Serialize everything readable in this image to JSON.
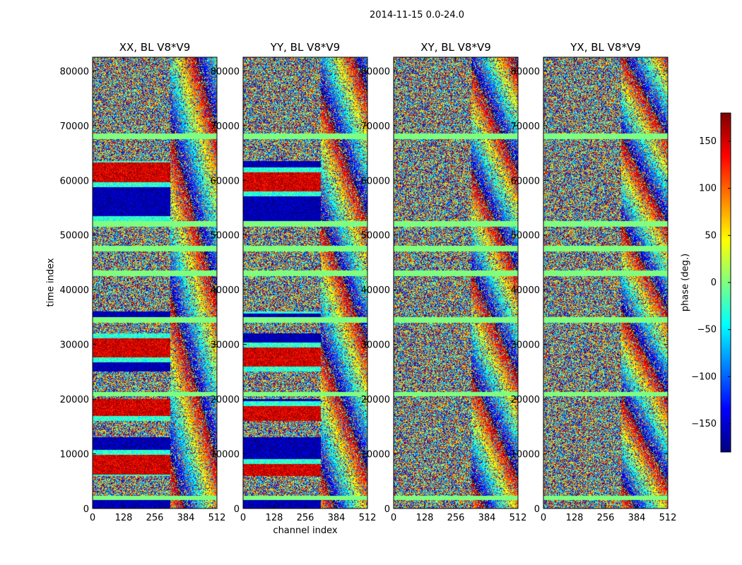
{
  "figure_title": "2014-11-15 0.0-24.0",
  "chart_data": [
    {
      "type": "heatmap",
      "title": "XX, BL V8*V9",
      "xlabel": "",
      "ylabel": "time index",
      "xlim": [
        0,
        512
      ],
      "ylim": [
        0,
        82500
      ],
      "xticks": [
        0,
        128,
        256,
        384,
        512
      ],
      "yticks": [
        0,
        10000,
        20000,
        30000,
        40000,
        50000,
        60000,
        70000,
        80000
      ],
      "value_range": [
        -180,
        180
      ],
      "colormap": "jet",
      "coherent_phase_time_ranges": [
        [
          0,
          2000
        ],
        [
          6000,
          13000
        ],
        [
          16000,
          20000
        ],
        [
          25000,
          32000
        ],
        [
          34500,
          36000
        ],
        [
          52500,
          63500
        ]
      ]
    },
    {
      "type": "heatmap",
      "title": "YY, BL V8*V9",
      "xlabel": "channel index",
      "ylabel": "",
      "xlim": [
        0,
        512
      ],
      "ylim": [
        0,
        82500
      ],
      "xticks": [
        0,
        128,
        256,
        384,
        512
      ],
      "yticks": [
        0,
        10000,
        20000,
        30000,
        40000,
        50000,
        60000,
        70000,
        80000
      ],
      "value_range": [
        -180,
        180
      ],
      "colormap": "jet",
      "coherent_phase_time_ranges": [
        [
          0,
          2000
        ],
        [
          6000,
          13000
        ],
        [
          16000,
          20000
        ],
        [
          25000,
          32000
        ],
        [
          34500,
          36000
        ],
        [
          52500,
          63500
        ]
      ]
    },
    {
      "type": "heatmap",
      "title": "XY, BL V8*V9",
      "xlabel": "",
      "ylabel": "",
      "xlim": [
        0,
        512
      ],
      "ylim": [
        0,
        82500
      ],
      "xticks": [
        0,
        128,
        256,
        384,
        512
      ],
      "yticks": [
        0,
        10000,
        20000,
        30000,
        40000,
        50000,
        60000,
        70000,
        80000
      ],
      "value_range": [
        -180,
        180
      ],
      "colormap": "jet",
      "coherent_phase_time_ranges": []
    },
    {
      "type": "heatmap",
      "title": "YX, BL V8*V9",
      "xlabel": "",
      "ylabel": "",
      "xlim": [
        0,
        512
      ],
      "ylim": [
        0,
        82500
      ],
      "xticks": [
        0,
        128,
        256,
        384,
        512
      ],
      "yticks": [
        0,
        10000,
        20000,
        30000,
        40000,
        50000,
        60000,
        70000,
        80000
      ],
      "value_range": [
        -180,
        180
      ],
      "colormap": "jet",
      "coherent_phase_time_ranges": []
    }
  ],
  "colorbar": {
    "label": "phase (deg.)",
    "range": [
      -180,
      180
    ],
    "ticks": [
      150,
      100,
      50,
      0,
      -50,
      -100,
      -150
    ],
    "tick_labels": [
      "150",
      "100",
      "50",
      "0",
      "−50",
      "−100",
      "−150"
    ]
  },
  "flagged_time_ranges": [
    [
      1500,
      2300
    ],
    [
      20500,
      21300
    ],
    [
      34000,
      35000
    ],
    [
      42500,
      43500
    ],
    [
      47000,
      48000
    ],
    [
      51500,
      52500
    ],
    [
      67500,
      68500
    ]
  ]
}
